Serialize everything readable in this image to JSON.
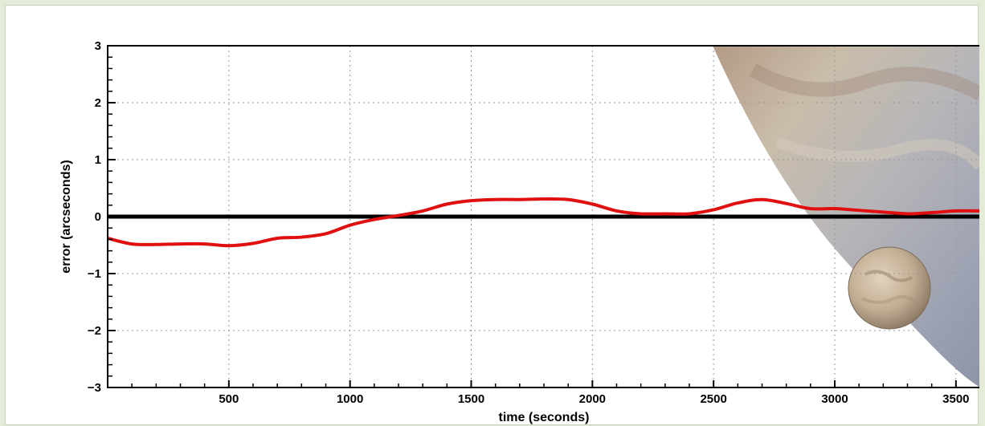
{
  "chart_data": {
    "type": "line",
    "xlabel": "time (seconds)",
    "ylabel": "error (arcseconds)",
    "xlim": [
      0,
      3600
    ],
    "ylim": [
      -3,
      3
    ],
    "x_ticks": [
      500,
      1000,
      1500,
      2000,
      2500,
      3000,
      3500
    ],
    "y_ticks": [
      3,
      2,
      1,
      0,
      -1,
      -2,
      -3
    ],
    "x_tick_labels": [
      "500",
      "1000",
      "1500",
      "2000",
      "2500",
      "3000",
      "3500"
    ],
    "y_tick_labels": [
      "3",
      "2",
      "1",
      "0",
      "−1",
      "−2",
      "−3"
    ],
    "grid": true,
    "reference_line_y": 0,
    "series": [
      {
        "color": "#e01010",
        "x": [
          0,
          100,
          200,
          300,
          400,
          500,
          600,
          700,
          800,
          900,
          1000,
          1100,
          1200,
          1300,
          1400,
          1500,
          1600,
          1700,
          1800,
          1900,
          2000,
          2100,
          2200,
          2300,
          2400,
          2500,
          2600,
          2700,
          2800,
          2900,
          3000,
          3100,
          3200,
          3300,
          3400,
          3500,
          3600
        ],
        "y": [
          -0.38,
          -0.48,
          -0.49,
          -0.48,
          -0.48,
          -0.51,
          -0.47,
          -0.38,
          -0.36,
          -0.3,
          -0.15,
          -0.05,
          0.02,
          0.1,
          0.22,
          0.28,
          0.3,
          0.3,
          0.31,
          0.3,
          0.22,
          0.1,
          0.05,
          0.05,
          0.05,
          0.12,
          0.24,
          0.3,
          0.23,
          0.14,
          0.14,
          0.11,
          0.08,
          0.05,
          0.07,
          0.1,
          0.1
        ]
      }
    ]
  },
  "colors": {
    "page_background": "#e4ebd6",
    "data_line": "#e01010",
    "reference_line": "#000000",
    "planet_shade": "#a8adb8",
    "moon": "#c2ae94"
  }
}
